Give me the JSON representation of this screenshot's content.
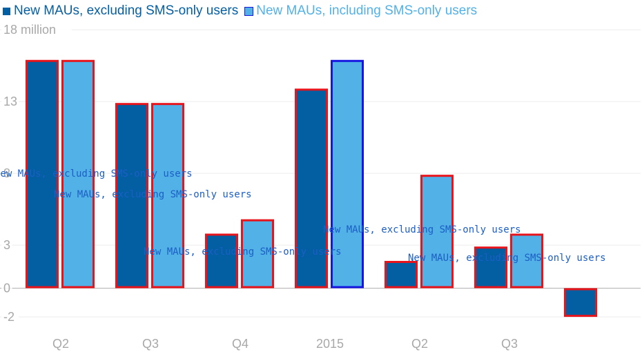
{
  "chart_data": {
    "type": "bar",
    "categories": [
      "Q2",
      "Q3",
      "Q4",
      "2015",
      "Q2",
      "Q3",
      ""
    ],
    "series": [
      {
        "name": "New MAUs, excluding SMS-only users",
        "color": "#035fa2",
        "values": [
          15.9,
          12.9,
          3.8,
          13.9,
          1.9,
          2.9,
          -2.0
        ]
      },
      {
        "name": "New MAUs, including SMS-only users",
        "color": "#52b1e6",
        "values": [
          15.9,
          12.9,
          4.8,
          15.9,
          7.9,
          3.8,
          null
        ]
      }
    ],
    "y_ticks": [
      "18 million",
      "13",
      "8",
      "3",
      "0",
      "-2"
    ],
    "y_tick_values": [
      18,
      13,
      8,
      3,
      0,
      -2
    ],
    "ylim": [
      -2,
      18
    ],
    "grid": true,
    "legend_position": "top-left",
    "highlight_color": "#e8141b",
    "selected_color": "#1616e0",
    "selected_bar": {
      "category_index": 3,
      "series_index": 1
    },
    "hover_labels": [
      "New MAUs, excluding SMS-only users",
      "New MAUs, excluding SMS-only users",
      "New MAUs, excluding SMS-only users",
      "New MAUs, excluding SMS-only users",
      "New MAUs, excluding SMS-only users"
    ]
  }
}
